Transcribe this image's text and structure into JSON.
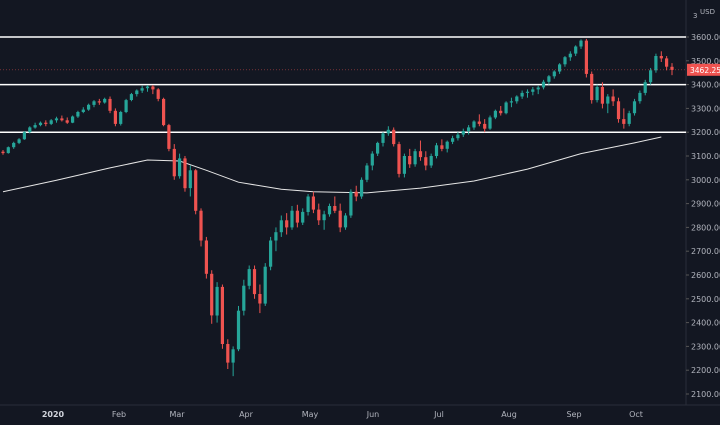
{
  "chart_data": {
    "type": "candlestick",
    "currency": "USD",
    "currency_prefix": "3",
    "y_ticks": [
      "3600.00",
      "3500.00",
      "3400.00",
      "3300.00",
      "3200.00",
      "3100.00",
      "3000.00",
      "2900.00",
      "2800.00",
      "2700.00",
      "2600.00",
      "2500.00",
      "2400.00",
      "2300.00",
      "2200.00",
      "2100.00"
    ],
    "x_ticks": [
      {
        "label": "2020",
        "bold": true,
        "index": 0
      },
      {
        "label": "Feb",
        "bold": false,
        "index": 1
      },
      {
        "label": "Mar",
        "bold": false,
        "index": 2
      },
      {
        "label": "Apr",
        "bold": false,
        "index": 3
      },
      {
        "label": "May",
        "bold": false,
        "index": 4
      },
      {
        "label": "Jun",
        "bold": false,
        "index": 5
      },
      {
        "label": "Jul",
        "bold": false,
        "index": 6
      },
      {
        "label": "Aug",
        "bold": false,
        "index": 7
      },
      {
        "label": "Sep",
        "bold": false,
        "index": 8
      },
      {
        "label": "Oct",
        "bold": false,
        "index": 9
      }
    ],
    "ylim": [
      2070,
      3700
    ],
    "last_price": "3462.25",
    "horizontal_levels": [
      3600,
      3400,
      3200
    ],
    "moving_average": {
      "name": "",
      "points": [
        [
          0,
          2950
        ],
        [
          10,
          2998
        ],
        [
          20,
          3050
        ],
        [
          27,
          3083
        ],
        [
          33,
          3079
        ],
        [
          38,
          3040
        ],
        [
          44,
          2990
        ],
        [
          52,
          2960
        ],
        [
          58,
          2950
        ],
        [
          68,
          2945
        ],
        [
          78,
          2965
        ],
        [
          88,
          2995
        ],
        [
          98,
          3045
        ],
        [
          108,
          3110
        ],
        [
          118,
          3155
        ],
        [
          123,
          3180
        ]
      ]
    },
    "candles": [
      [
        3118,
        3125,
        3105,
        3112
      ],
      [
        3112,
        3140,
        3110,
        3137
      ],
      [
        3137,
        3160,
        3130,
        3155
      ],
      [
        3155,
        3175,
        3150,
        3170
      ],
      [
        3170,
        3205,
        3168,
        3200
      ],
      [
        3200,
        3225,
        3195,
        3220
      ],
      [
        3220,
        3240,
        3215,
        3230
      ],
      [
        3230,
        3245,
        3225,
        3240
      ],
      [
        3240,
        3250,
        3225,
        3235
      ],
      [
        3235,
        3255,
        3230,
        3250
      ],
      [
        3250,
        3265,
        3240,
        3258
      ],
      [
        3258,
        3270,
        3245,
        3250
      ],
      [
        3250,
        3262,
        3235,
        3240
      ],
      [
        3240,
        3270,
        3238,
        3266
      ],
      [
        3266,
        3290,
        3260,
        3285
      ],
      [
        3285,
        3305,
        3280,
        3295
      ],
      [
        3295,
        3320,
        3290,
        3315
      ],
      [
        3315,
        3335,
        3305,
        3330
      ],
      [
        3330,
        3340,
        3315,
        3325
      ],
      [
        3325,
        3345,
        3320,
        3340
      ],
      [
        3340,
        3350,
        3280,
        3290
      ],
      [
        3290,
        3300,
        3225,
        3235
      ],
      [
        3235,
        3290,
        3228,
        3285
      ],
      [
        3285,
        3340,
        3280,
        3335
      ],
      [
        3335,
        3365,
        3330,
        3360
      ],
      [
        3360,
        3380,
        3350,
        3375
      ],
      [
        3375,
        3395,
        3365,
        3385
      ],
      [
        3385,
        3398,
        3370,
        3392
      ],
      [
        3392,
        3398,
        3360,
        3380
      ],
      [
        3380,
        3385,
        3330,
        3340
      ],
      [
        3340,
        3345,
        3225,
        3230
      ],
      [
        3230,
        3235,
        3120,
        3130
      ],
      [
        3130,
        3150,
        3000,
        3015
      ],
      [
        3015,
        3110,
        3005,
        3090
      ],
      [
        3090,
        3100,
        2950,
        2965
      ],
      [
        2965,
        3060,
        2930,
        3040
      ],
      [
        3040,
        3045,
        2855,
        2870
      ],
      [
        2870,
        2880,
        2720,
        2745
      ],
      [
        2745,
        2760,
        2585,
        2605
      ],
      [
        2605,
        2620,
        2395,
        2430
      ],
      [
        2430,
        2570,
        2400,
        2550
      ],
      [
        2550,
        2560,
        2290,
        2310
      ],
      [
        2310,
        2330,
        2205,
        2232
      ],
      [
        2232,
        2300,
        2175,
        2288
      ],
      [
        2288,
        2470,
        2280,
        2450
      ],
      [
        2450,
        2580,
        2430,
        2555
      ],
      [
        2555,
        2640,
        2540,
        2625
      ],
      [
        2625,
        2640,
        2500,
        2520
      ],
      [
        2520,
        2560,
        2440,
        2480
      ],
      [
        2480,
        2650,
        2470,
        2635
      ],
      [
        2635,
        2760,
        2620,
        2745
      ],
      [
        2745,
        2800,
        2700,
        2780
      ],
      [
        2780,
        2850,
        2760,
        2830
      ],
      [
        2830,
        2860,
        2770,
        2800
      ],
      [
        2800,
        2890,
        2790,
        2870
      ],
      [
        2870,
        2895,
        2800,
        2820
      ],
      [
        2820,
        2880,
        2810,
        2865
      ],
      [
        2865,
        2940,
        2850,
        2930
      ],
      [
        2930,
        2950,
        2860,
        2875
      ],
      [
        2875,
        2900,
        2810,
        2830
      ],
      [
        2830,
        2870,
        2790,
        2855
      ],
      [
        2855,
        2900,
        2845,
        2890
      ],
      [
        2890,
        2930,
        2860,
        2870
      ],
      [
        2870,
        2900,
        2780,
        2800
      ],
      [
        2800,
        2860,
        2790,
        2850
      ],
      [
        2850,
        2960,
        2840,
        2950
      ],
      [
        2950,
        2975,
        2910,
        2930
      ],
      [
        2930,
        3010,
        2920,
        3000
      ],
      [
        3000,
        3070,
        2990,
        3060
      ],
      [
        3060,
        3120,
        3040,
        3110
      ],
      [
        3110,
        3160,
        3100,
        3155
      ],
      [
        3155,
        3200,
        3140,
        3195
      ],
      [
        3195,
        3225,
        3185,
        3210
      ],
      [
        3210,
        3220,
        3140,
        3150
      ],
      [
        3150,
        3160,
        3010,
        3025
      ],
      [
        3025,
        3110,
        3010,
        3100
      ],
      [
        3100,
        3130,
        3050,
        3065
      ],
      [
        3065,
        3130,
        3055,
        3120
      ],
      [
        3120,
        3165,
        3080,
        3095
      ],
      [
        3095,
        3120,
        3040,
        3060
      ],
      [
        3060,
        3110,
        3050,
        3100
      ],
      [
        3100,
        3155,
        3090,
        3145
      ],
      [
        3145,
        3170,
        3120,
        3130
      ],
      [
        3130,
        3165,
        3115,
        3160
      ],
      [
        3160,
        3185,
        3150,
        3175
      ],
      [
        3175,
        3200,
        3165,
        3190
      ],
      [
        3190,
        3215,
        3180,
        3205
      ],
      [
        3205,
        3230,
        3190,
        3220
      ],
      [
        3220,
        3250,
        3210,
        3245
      ],
      [
        3245,
        3275,
        3225,
        3235
      ],
      [
        3235,
        3255,
        3200,
        3215
      ],
      [
        3215,
        3270,
        3210,
        3262
      ],
      [
        3262,
        3295,
        3255,
        3290
      ],
      [
        3290,
        3310,
        3270,
        3280
      ],
      [
        3280,
        3330,
        3275,
        3325
      ],
      [
        3325,
        3345,
        3305,
        3330
      ],
      [
        3330,
        3355,
        3320,
        3350
      ],
      [
        3350,
        3375,
        3340,
        3365
      ],
      [
        3365,
        3380,
        3345,
        3370
      ],
      [
        3370,
        3390,
        3355,
        3380
      ],
      [
        3380,
        3395,
        3360,
        3388
      ],
      [
        3388,
        3420,
        3380,
        3412
      ],
      [
        3412,
        3440,
        3400,
        3435
      ],
      [
        3435,
        3460,
        3425,
        3455
      ],
      [
        3455,
        3490,
        3445,
        3485
      ],
      [
        3485,
        3520,
        3475,
        3515
      ],
      [
        3515,
        3540,
        3500,
        3530
      ],
      [
        3530,
        3565,
        3520,
        3560
      ],
      [
        3560,
        3590,
        3550,
        3585
      ],
      [
        3585,
        3592,
        3430,
        3445
      ],
      [
        3445,
        3455,
        3320,
        3335
      ],
      [
        3335,
        3400,
        3325,
        3390
      ],
      [
        3390,
        3410,
        3300,
        3320
      ],
      [
        3320,
        3360,
        3280,
        3350
      ],
      [
        3350,
        3380,
        3310,
        3330
      ],
      [
        3330,
        3345,
        3240,
        3255
      ],
      [
        3255,
        3300,
        3215,
        3235
      ],
      [
        3235,
        3290,
        3225,
        3280
      ],
      [
        3280,
        3340,
        3270,
        3330
      ],
      [
        3330,
        3375,
        3320,
        3365
      ],
      [
        3365,
        3420,
        3355,
        3410
      ],
      [
        3410,
        3470,
        3400,
        3460
      ],
      [
        3460,
        3530,
        3450,
        3520
      ],
      [
        3520,
        3540,
        3495,
        3510
      ],
      [
        3510,
        3520,
        3460,
        3475
      ],
      [
        3475,
        3490,
        3440,
        3462
      ]
    ]
  }
}
